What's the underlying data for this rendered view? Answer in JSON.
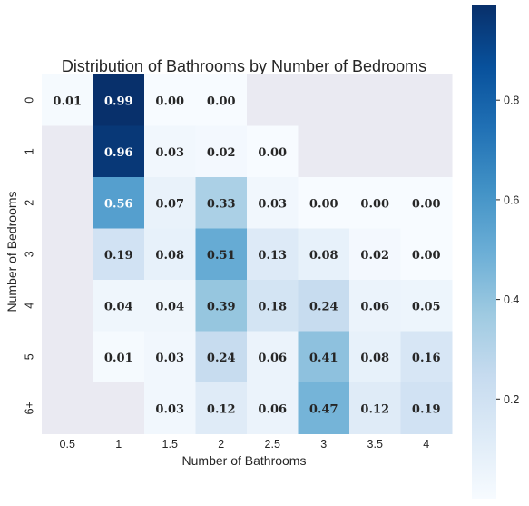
{
  "chart_data": {
    "type": "heatmap",
    "title": "Distribution of Bathrooms by Number of Bedrooms",
    "xlabel": "Number of Bathrooms",
    "ylabel": "Number of Bedrooms",
    "x_categories": [
      "0.5",
      "1",
      "1.5",
      "2",
      "2.5",
      "3",
      "3.5",
      "4"
    ],
    "y_categories": [
      "0",
      "1",
      "2",
      "3",
      "4",
      "5",
      "6+"
    ],
    "values": [
      [
        0.01,
        0.99,
        0.0,
        0.0,
        null,
        null,
        null,
        null
      ],
      [
        null,
        0.96,
        0.03,
        0.02,
        0.0,
        null,
        null,
        null
      ],
      [
        null,
        0.56,
        0.07,
        0.33,
        0.03,
        0.0,
        0.0,
        0.0
      ],
      [
        null,
        0.19,
        0.08,
        0.51,
        0.13,
        0.08,
        0.02,
        0.0
      ],
      [
        null,
        0.04,
        0.04,
        0.39,
        0.18,
        0.24,
        0.06,
        0.05
      ],
      [
        null,
        0.01,
        0.03,
        0.24,
        0.06,
        0.41,
        0.08,
        0.16
      ],
      [
        null,
        null,
        0.03,
        0.12,
        0.06,
        0.47,
        0.12,
        0.19
      ]
    ],
    "colorscale": "Blues",
    "vmin": 0,
    "vmax": 0.99,
    "colorbar_ticks": [
      0.2,
      0.4,
      0.6,
      0.8
    ],
    "colorbar_tick_labels": [
      "0.2",
      "0.4",
      "0.6",
      "0.8"
    ],
    "missing_color": "#eaeaf2",
    "annotate": true
  }
}
